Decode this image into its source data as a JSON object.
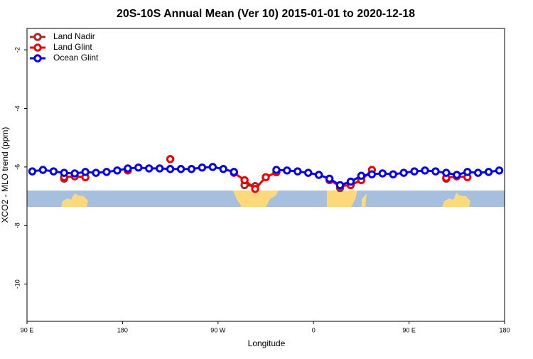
{
  "chart_data": {
    "type": "line",
    "title": "20S-10S Annual Mean (Ver 10)   2015-01-01 to 2020-12-18",
    "x_label": "Longitude",
    "y_label": "XCO2 - MLO trend (ppm)",
    "x": [
      95,
      105,
      115,
      125,
      135,
      145,
      155,
      165,
      175,
      185,
      195,
      205,
      215,
      225,
      235,
      245,
      255,
      265,
      275,
      285,
      295,
      305,
      315,
      325,
      335,
      345,
      355,
      365,
      375,
      385,
      395,
      405,
      415,
      425,
      435,
      445,
      455,
      465,
      475,
      485,
      495,
      505,
      515,
      525,
      535
    ],
    "series": [
      {
        "name": "Land Nadir",
        "color": "#a52a2a",
        "values": [
          null,
          null,
          null,
          -6.4,
          null,
          null,
          null,
          null,
          null,
          null,
          null,
          null,
          null,
          null,
          null,
          null,
          null,
          null,
          null,
          null,
          -6.62,
          -6.65,
          null,
          null,
          null,
          null,
          null,
          null,
          null,
          -6.72,
          null,
          null,
          null,
          null,
          null,
          null,
          null,
          null,
          null,
          -6.4,
          null,
          null,
          null,
          null,
          null
        ]
      },
      {
        "name": "Land Glint",
        "color": "#ee0000",
        "values": [
          null,
          null,
          null,
          -6.35,
          -6.32,
          -6.35,
          null,
          null,
          null,
          -6.12,
          null,
          null,
          null,
          -5.73,
          null,
          null,
          null,
          null,
          null,
          -6.2,
          -6.45,
          -6.75,
          -6.35,
          -6.18,
          null,
          null,
          null,
          null,
          -6.45,
          -6.65,
          -6.62,
          -6.45,
          -6.1,
          null,
          null,
          null,
          null,
          null,
          null,
          -6.37,
          -6.32,
          -6.35,
          null,
          null,
          null
        ]
      },
      {
        "name": "Ocean Glint",
        "color": "#0000ee",
        "values": [
          -6.15,
          -6.1,
          -6.15,
          -6.2,
          -6.22,
          -6.17,
          -6.2,
          -6.17,
          -6.12,
          -6.05,
          -6.02,
          -6.05,
          -6.05,
          -6.07,
          -6.07,
          -6.07,
          -6.02,
          -6.0,
          -6.07,
          -6.17,
          null,
          null,
          null,
          -6.1,
          -6.12,
          -6.15,
          -6.2,
          -6.27,
          -6.4,
          -6.62,
          -6.5,
          -6.3,
          -6.25,
          -6.22,
          -6.25,
          -6.2,
          -6.15,
          -6.12,
          -6.15,
          -6.2,
          -6.27,
          -6.17,
          -6.2,
          -6.17,
          -6.12
        ]
      }
    ],
    "xlim": [
      90,
      540
    ],
    "xticks": [
      {
        "value": 90,
        "label": "90 E"
      },
      180,
      {
        "value": 270,
        "label": "90 W"
      },
      {
        "value": 360,
        "label": "0"
      },
      {
        "value": 450,
        "label": "90 E"
      },
      {
        "value": 540,
        "label": "180"
      }
    ],
    "ylim": [
      -11.27,
      -1.27
    ],
    "yticks": [
      -10,
      -8,
      -6,
      -4,
      -2
    ],
    "legend": "top-left"
  }
}
